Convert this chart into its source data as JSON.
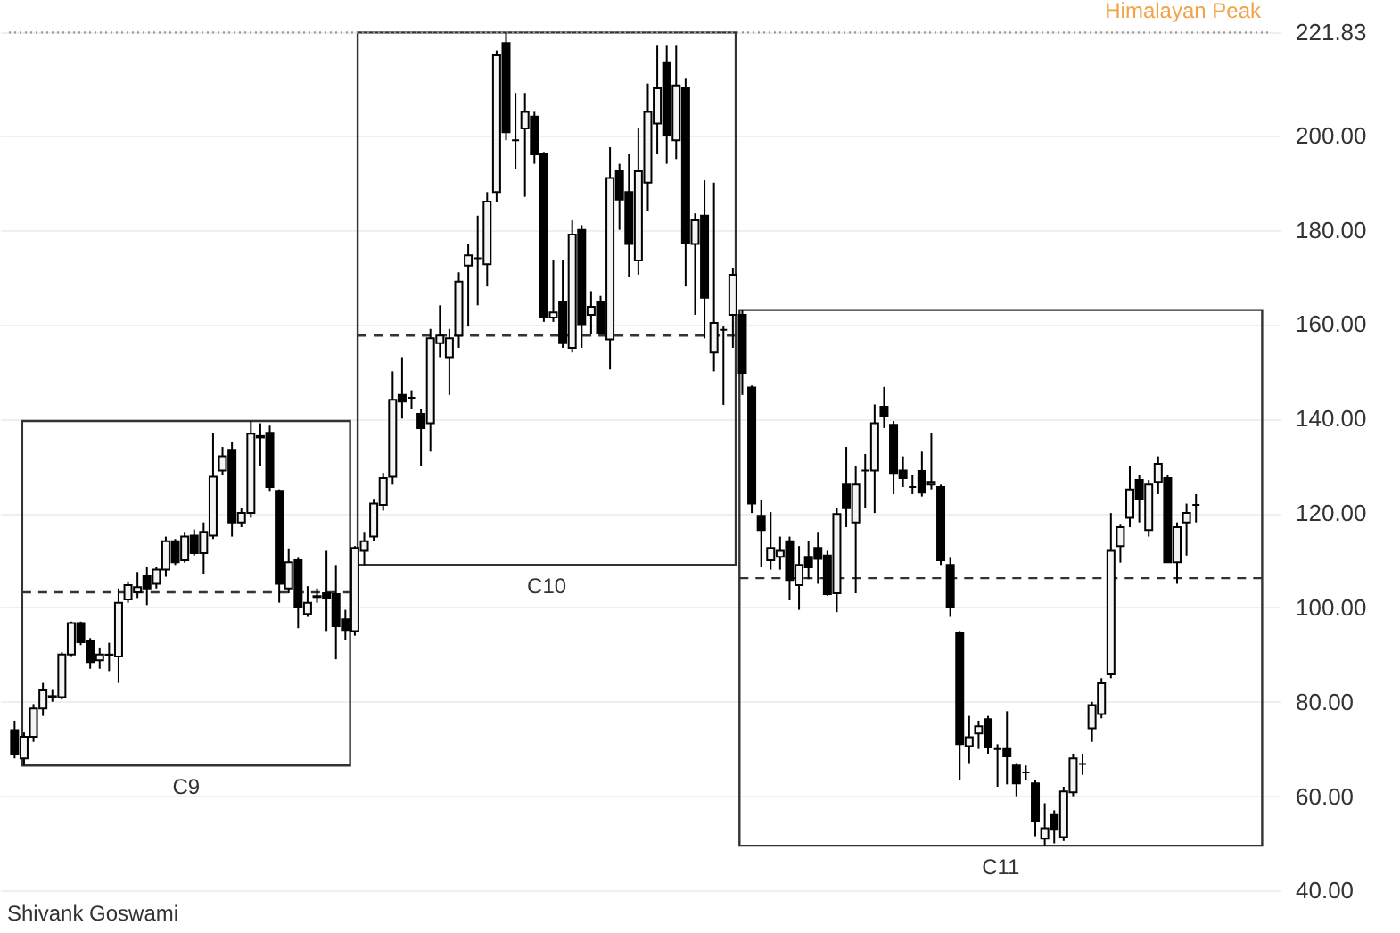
{
  "chart_data": {
    "type": "candlestick",
    "categories": [
      null,
      null,
      null,
      null,
      null,
      null,
      null,
      null,
      null,
      null,
      null,
      null,
      null,
      null,
      null,
      null,
      null,
      null,
      null,
      null,
      null,
      null,
      null,
      null,
      null,
      null,
      null,
      null,
      null,
      null,
      null,
      null,
      null,
      null,
      null,
      null,
      null,
      null,
      null,
      null,
      null,
      null,
      null,
      null,
      null,
      null,
      null,
      null,
      null,
      null,
      null,
      null,
      null,
      null,
      null,
      null,
      null,
      null,
      null,
      null,
      null,
      null,
      null,
      null,
      null,
      null,
      null,
      null,
      null,
      null,
      null,
      null,
      null,
      null,
      null,
      null,
      null,
      null,
      null,
      null,
      null,
      null,
      null,
      null,
      null,
      null,
      null,
      null,
      null,
      null,
      null,
      null,
      null,
      null,
      null,
      null,
      null,
      null,
      null,
      null,
      null,
      null,
      null,
      null,
      null,
      null,
      null,
      null,
      null,
      null,
      null,
      null,
      null,
      null,
      null,
      null,
      null,
      null,
      null,
      null,
      null,
      null,
      null,
      null,
      null,
      null
    ],
    "ohlc": [
      [
        74,
        76,
        68,
        69
      ],
      [
        68,
        73.5,
        66.5,
        72.6
      ],
      [
        72.6,
        79.5,
        71.5,
        78.6
      ],
      [
        78.6,
        84,
        77,
        82.4
      ],
      [
        81,
        82.5,
        80,
        81.2
      ],
      [
        81,
        90.5,
        80.5,
        90
      ],
      [
        90,
        97,
        89.5,
        96.7
      ],
      [
        96.7,
        97,
        92,
        92.6
      ],
      [
        93,
        93.5,
        87,
        88.4
      ],
      [
        88.8,
        91.5,
        87,
        90
      ],
      [
        89.8,
        92.5,
        86.5,
        90
      ],
      [
        89.6,
        104,
        84,
        101
      ],
      [
        101.7,
        105.5,
        101,
        104.7
      ],
      [
        103.2,
        107.5,
        102,
        104.3
      ],
      [
        106.6,
        108.5,
        100.5,
        104
      ],
      [
        105,
        108.5,
        104,
        108
      ],
      [
        108,
        115,
        106.5,
        114
      ],
      [
        114,
        114.5,
        109,
        109.6
      ],
      [
        110,
        116,
        109.5,
        115
      ],
      [
        115.2,
        116.5,
        111,
        111.5
      ],
      [
        111.5,
        118,
        107,
        116
      ],
      [
        115.2,
        137,
        114.5,
        127.7
      ],
      [
        129,
        134,
        128,
        132
      ],
      [
        133.4,
        135,
        115,
        118
      ],
      [
        118,
        121,
        117,
        120
      ],
      [
        120,
        139.5,
        119,
        136.8
      ],
      [
        136.3,
        139,
        130,
        136
      ],
      [
        137,
        138.5,
        124.5,
        125.5
      ],
      [
        124.7,
        125,
        101,
        105
      ],
      [
        104,
        112.5,
        103,
        109.6
      ],
      [
        110,
        110.5,
        95.6,
        100
      ],
      [
        98.6,
        104.5,
        98,
        101
      ],
      [
        102.2,
        104,
        101,
        102.4
      ],
      [
        103,
        112,
        95,
        102
      ],
      [
        102.8,
        109,
        89,
        96
      ],
      [
        97.5,
        99.5,
        93,
        95.2
      ],
      [
        95,
        113,
        94,
        112.6
      ],
      [
        112,
        116,
        109,
        114
      ],
      [
        115,
        123,
        114,
        122
      ],
      [
        121.7,
        128.5,
        120.5,
        127.4
      ],
      [
        127.7,
        150,
        126,
        144
      ],
      [
        145,
        153,
        140,
        143.6
      ],
      [
        144.4,
        146,
        142,
        144.4
      ],
      [
        141,
        142,
        130,
        138
      ],
      [
        139,
        159,
        133,
        157
      ],
      [
        156,
        164,
        153,
        157.6
      ],
      [
        153,
        159,
        145,
        157
      ],
      [
        157.6,
        171,
        155,
        169
      ],
      [
        172.4,
        177,
        159.5,
        174.6
      ],
      [
        174,
        183,
        164,
        174
      ],
      [
        172.7,
        188,
        168,
        186
      ],
      [
        188,
        218,
        186,
        217
      ],
      [
        219.6,
        221.83,
        199,
        200.7
      ],
      [
        199,
        209,
        192.8,
        199
      ],
      [
        201.5,
        209,
        187,
        205
      ],
      [
        204,
        205,
        194,
        196
      ],
      [
        196,
        196.5,
        160.5,
        161.5
      ],
      [
        161.4,
        173.5,
        160.5,
        162.5
      ],
      [
        164.8,
        173.5,
        155,
        156
      ],
      [
        155,
        182,
        154,
        179
      ],
      [
        180,
        181,
        155,
        160
      ],
      [
        162,
        167,
        158,
        163.7
      ],
      [
        164.8,
        166,
        158,
        158
      ],
      [
        156.8,
        197.5,
        150.4,
        191
      ],
      [
        192.4,
        194,
        180,
        186.4
      ],
      [
        188,
        196,
        170,
        177
      ],
      [
        173.5,
        201.5,
        170.5,
        192.4
      ],
      [
        190,
        211,
        184,
        205
      ],
      [
        202.5,
        219,
        196,
        210
      ],
      [
        215.5,
        219,
        194,
        200
      ],
      [
        199,
        219,
        195,
        210.6
      ],
      [
        210,
        212,
        168,
        177.3
      ],
      [
        177,
        183.5,
        162,
        182
      ],
      [
        183,
        190.5,
        157,
        165.6
      ],
      [
        154,
        190,
        150,
        160.3
      ],
      [
        158.8,
        159.5,
        142.9,
        158.8
      ],
      [
        162,
        172,
        155,
        170.5
      ],
      [
        162,
        163,
        145,
        149.7
      ],
      [
        146.6,
        147,
        120,
        122
      ],
      [
        119.4,
        122.8,
        108.5,
        116.4
      ],
      [
        110,
        120.2,
        108,
        112.6
      ],
      [
        110.7,
        115,
        108,
        112
      ],
      [
        114,
        115,
        101.5,
        105.8
      ],
      [
        104.7,
        113,
        99.5,
        109
      ],
      [
        110.7,
        114,
        106,
        108.5
      ],
      [
        112.6,
        116,
        105,
        110.3
      ],
      [
        111,
        112,
        102.5,
        102.8
      ],
      [
        103,
        121,
        99,
        119.8
      ],
      [
        126,
        134,
        117,
        121
      ],
      [
        118,
        130,
        103,
        126
      ],
      [
        129,
        132.5,
        121,
        129
      ],
      [
        129,
        143,
        120,
        139
      ],
      [
        142.5,
        146.7,
        138,
        140.6
      ],
      [
        138.7,
        139.5,
        124,
        128.5
      ],
      [
        129,
        132,
        125.5,
        127.4
      ],
      [
        125.5,
        128,
        124,
        125.5
      ],
      [
        128.9,
        133,
        123.5,
        124.3
      ],
      [
        126,
        137,
        125,
        126.6
      ],
      [
        125.5,
        126,
        109,
        110
      ],
      [
        109,
        110.5,
        98,
        100
      ],
      [
        94.5,
        95,
        63.5,
        71
      ],
      [
        70.6,
        77,
        67,
        72.5
      ],
      [
        73.3,
        76,
        70,
        74.8
      ],
      [
        76.3,
        77,
        69,
        70.3
      ],
      [
        70,
        71,
        62,
        70
      ],
      [
        70,
        78,
        62.5,
        68.4
      ],
      [
        66.5,
        67,
        60,
        62.7
      ],
      [
        65,
        66.5,
        63.5,
        65
      ],
      [
        62.7,
        63.5,
        51.5,
        54.8
      ],
      [
        51,
        58.5,
        49.5,
        53.2
      ],
      [
        56,
        57,
        50,
        52.9
      ],
      [
        51.3,
        62,
        50.5,
        61
      ],
      [
        60.8,
        69,
        60,
        68
      ],
      [
        66.8,
        69,
        64.5,
        66.8
      ],
      [
        74.4,
        80,
        71.5,
        79.3
      ],
      [
        77.4,
        85,
        76.5,
        83.9
      ],
      [
        85.8,
        120,
        85,
        112
      ],
      [
        113,
        117.5,
        109.5,
        117
      ],
      [
        119,
        130,
        117,
        125
      ],
      [
        127,
        128,
        118,
        123
      ],
      [
        116.4,
        127,
        115,
        126
      ],
      [
        126.6,
        132,
        124,
        130.4
      ],
      [
        127.4,
        128,
        109.5,
        109.6
      ],
      [
        109.6,
        118,
        105,
        117
      ],
      [
        118,
        122,
        111,
        120
      ],
      [
        121.7,
        124,
        118,
        121.7
      ]
    ],
    "ylim": [
      31,
      228.7
    ],
    "yticks": [
      {
        "value": 40,
        "label": "40.00"
      },
      {
        "value": 60,
        "label": "60.00"
      },
      {
        "value": 80,
        "label": "80.00"
      },
      {
        "value": 100,
        "label": "100.00"
      },
      {
        "value": 120,
        "label": "120.00"
      },
      {
        "value": 140,
        "label": "140.00"
      },
      {
        "value": 160,
        "label": "160.00"
      },
      {
        "value": 180,
        "label": "180.00"
      },
      {
        "value": 200,
        "label": "200.00"
      },
      {
        "value": 221.83,
        "label": "221.83"
      }
    ],
    "tick_labels": "y",
    "grid": "y",
    "ref_lines": [
      {
        "axis": "y",
        "value": 103.2,
        "color": "#333333",
        "line_style": "dashed"
      },
      {
        "axis": "y",
        "value": 157.6,
        "color": "#333333",
        "line_style": "dashed"
      },
      {
        "axis": "y",
        "value": 106.2,
        "color": "#333333",
        "line_style": "dashed"
      },
      {
        "axis": "y",
        "value": 221.83,
        "label": "Himalayan Peak",
        "color": "#999999",
        "line_style": "dotted"
      }
    ],
    "annotations": [
      "C9",
      "C10",
      "C11",
      "Shivank Goswami"
    ]
  }
}
